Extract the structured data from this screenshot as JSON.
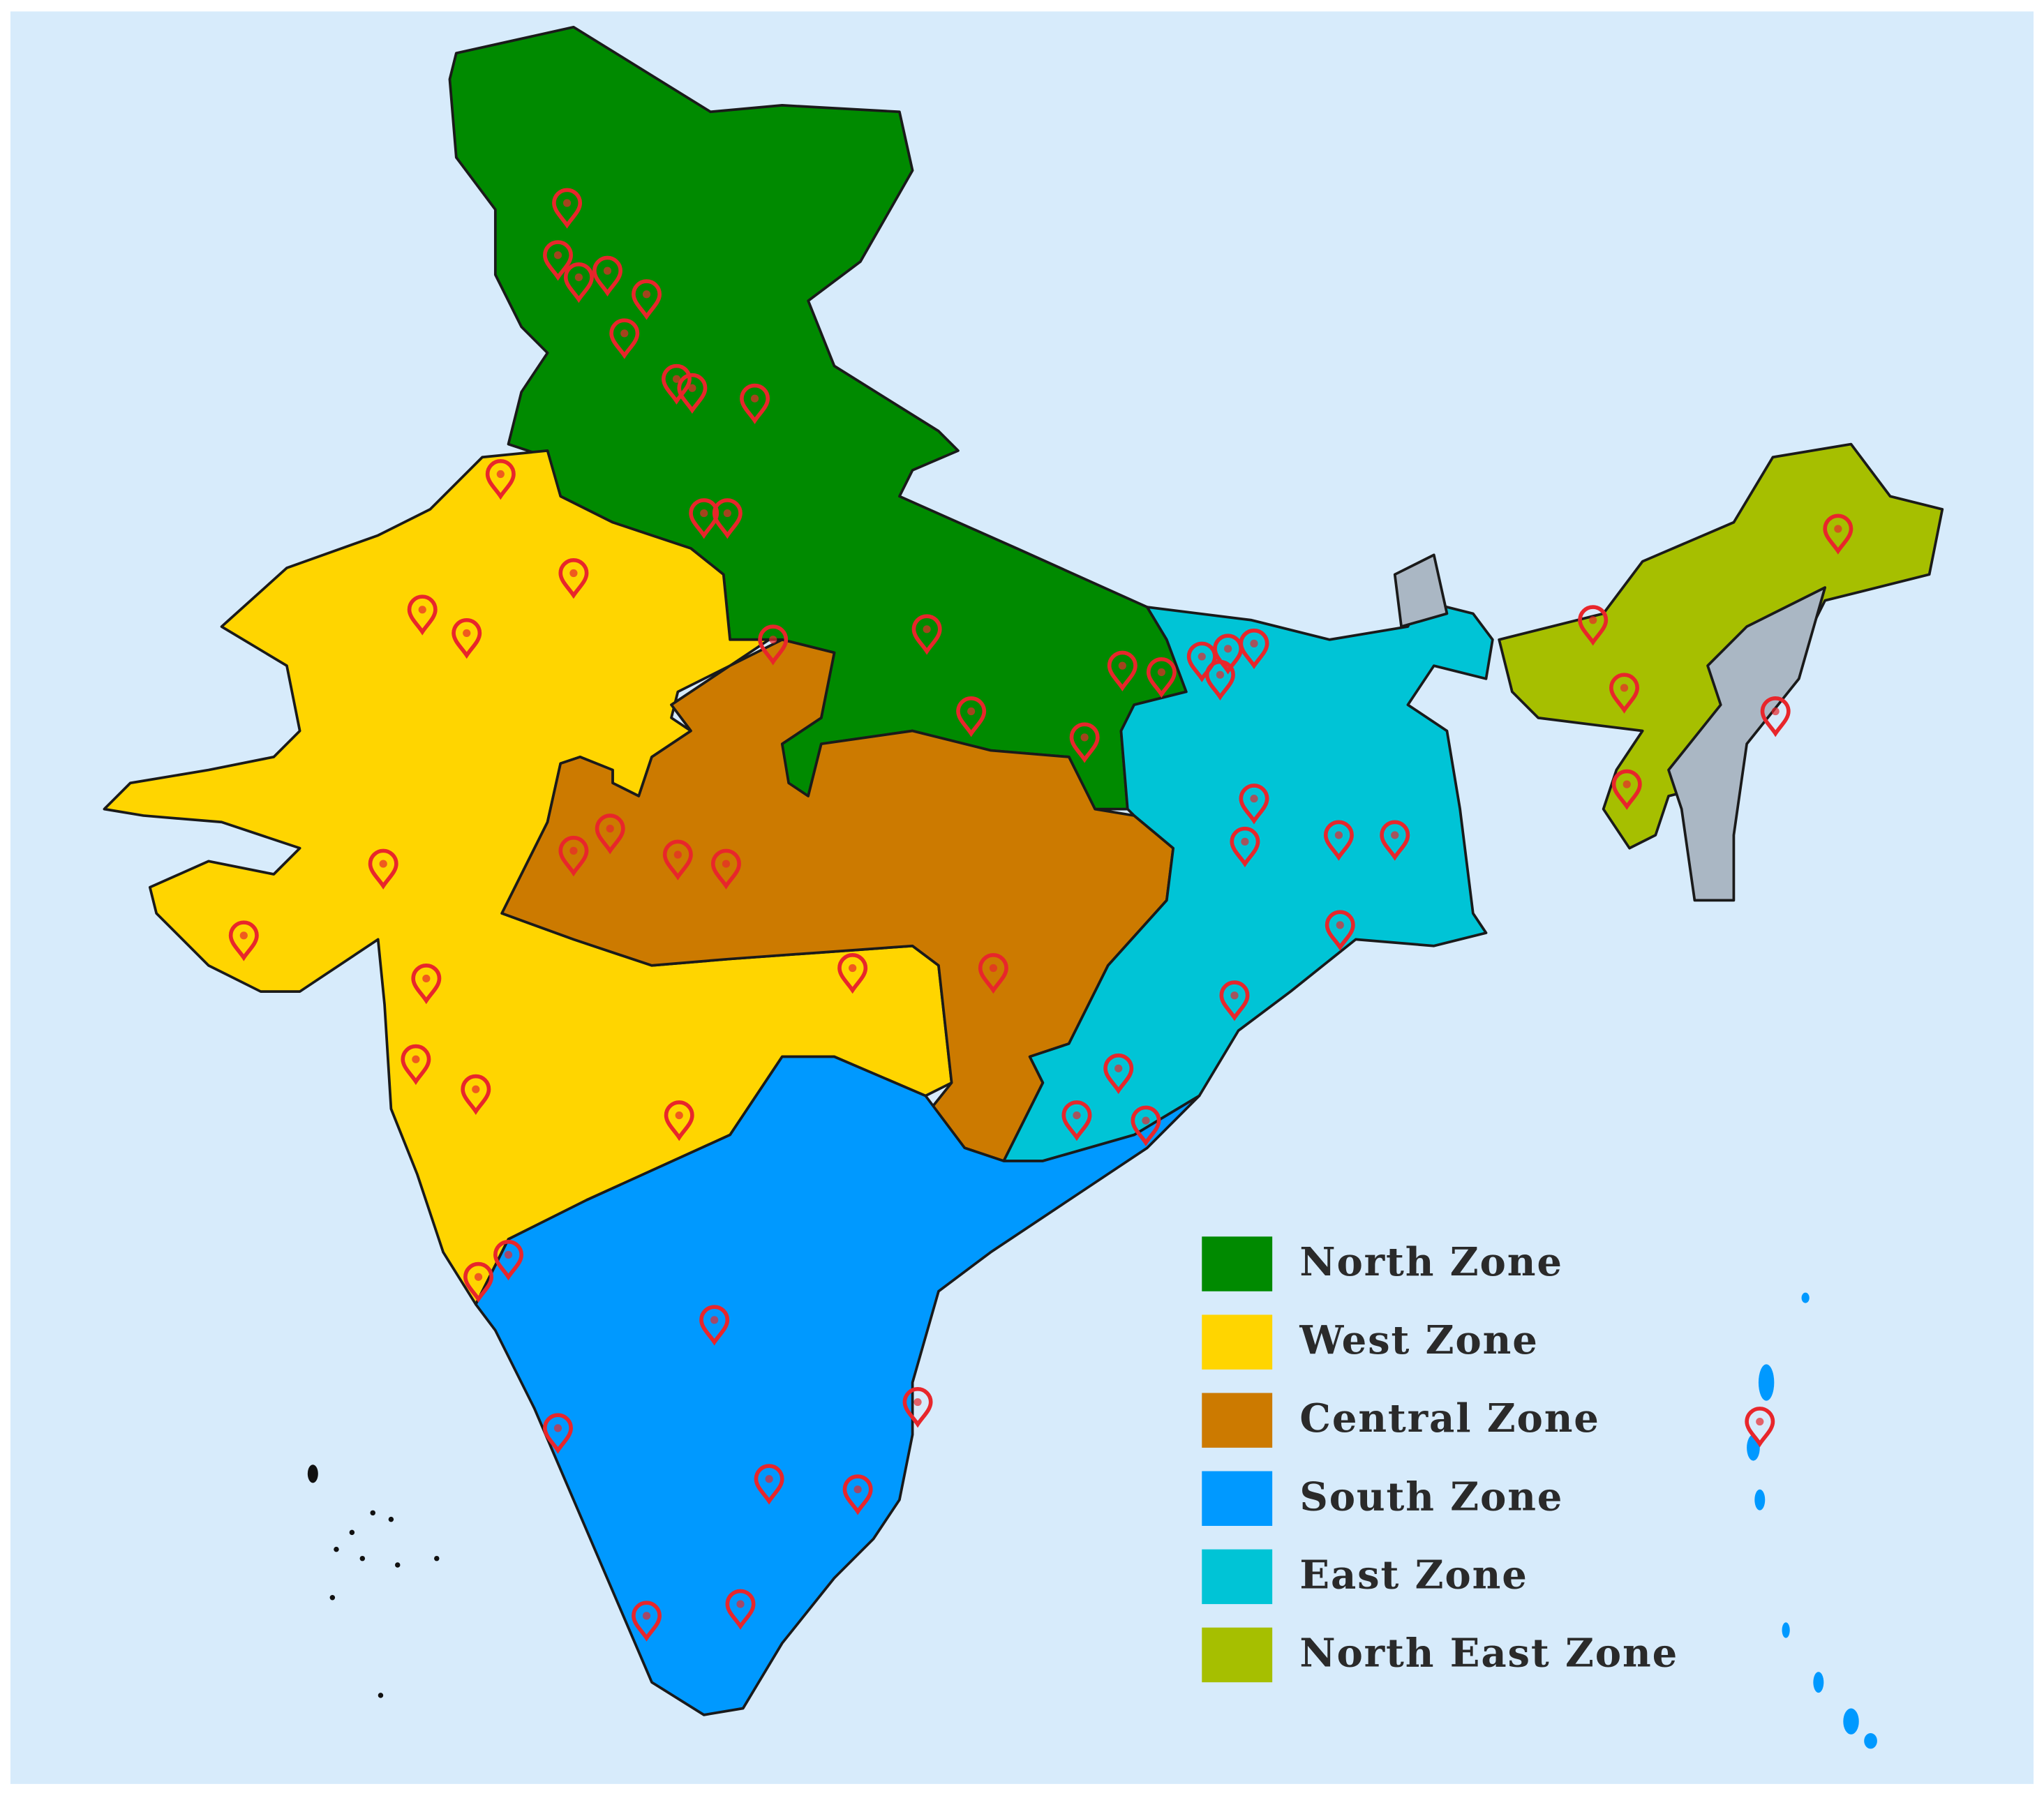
{
  "legend": {
    "items": [
      {
        "label": "North Zone",
        "color": "#008a00"
      },
      {
        "label": "West Zone",
        "color": "#ffd500"
      },
      {
        "label": "Central Zone",
        "color": "#cc7a00"
      },
      {
        "label": "South Zone",
        "color": "#0099ff"
      },
      {
        "label": "East Zone",
        "color": "#00c4d6"
      },
      {
        "label": "North East Zone",
        "color": "#a6bf00"
      }
    ]
  }
}
